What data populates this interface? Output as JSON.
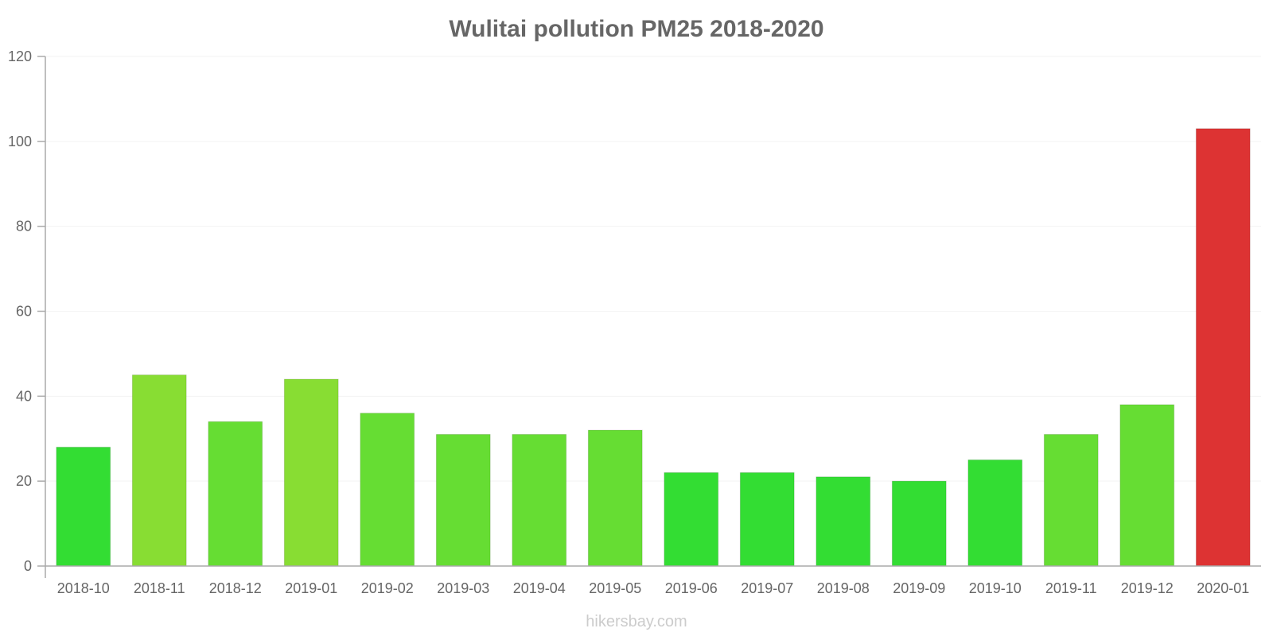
{
  "chart_data": {
    "type": "bar",
    "title": "Wulitai pollution PM25 2018-2020",
    "xlabel": "",
    "ylabel": "",
    "ylim": [
      0,
      120
    ],
    "yticks": [
      0,
      20,
      40,
      60,
      80,
      100,
      120
    ],
    "grid": true,
    "legend": "none",
    "categories": [
      "2018-10",
      "2018-11",
      "2018-12",
      "2019-01",
      "2019-02",
      "2019-03",
      "2019-04",
      "2019-05",
      "2019-06",
      "2019-07",
      "2019-08",
      "2019-09",
      "2019-10",
      "2019-11",
      "2019-12",
      "2020-01"
    ],
    "values": [
      28,
      45,
      34,
      44,
      36,
      31,
      31,
      32,
      22,
      22,
      21,
      20,
      25,
      31,
      38,
      103
    ],
    "colors": [
      "#33dd33",
      "#88dd33",
      "#66dd33",
      "#88dd33",
      "#66dd33",
      "#66dd33",
      "#66dd33",
      "#66dd33",
      "#33dd33",
      "#33dd33",
      "#33dd33",
      "#33dd33",
      "#33dd33",
      "#66dd33",
      "#66dd33",
      "#dd3333"
    ]
  },
  "footer": {
    "watermark": "hikersbay.com"
  }
}
